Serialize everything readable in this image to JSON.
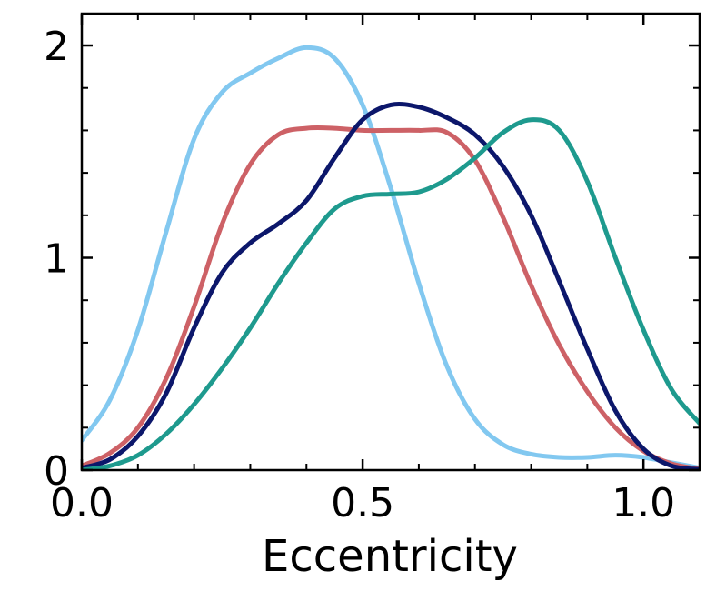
{
  "chart_data": {
    "type": "line",
    "title": "",
    "xlabel": "Eccentricity",
    "ylabel": "",
    "xlim": [
      0.0,
      1.1
    ],
    "ylim": [
      0.0,
      2.15
    ],
    "grid": false,
    "xticks": [
      {
        "value": 0.0,
        "label": "0.0"
      },
      {
        "value": 0.5,
        "label": "0.5"
      },
      {
        "value": 1.0,
        "label": "1.0"
      }
    ],
    "yticks": [
      {
        "value": 0,
        "label": "0"
      },
      {
        "value": 1,
        "label": "1"
      },
      {
        "value": 2,
        "label": "2"
      }
    ],
    "series": [
      {
        "color": "#82C8F0",
        "x": [
          0.0,
          0.05,
          0.1,
          0.15,
          0.2,
          0.25,
          0.3,
          0.35,
          0.4,
          0.45,
          0.5,
          0.55,
          0.6,
          0.65,
          0.7,
          0.75,
          0.8,
          0.85,
          0.9,
          0.95,
          1.0,
          1.05,
          1.1
        ],
        "y": [
          0.14,
          0.33,
          0.66,
          1.12,
          1.56,
          1.78,
          1.87,
          1.94,
          1.99,
          1.94,
          1.72,
          1.33,
          0.88,
          0.49,
          0.24,
          0.12,
          0.075,
          0.06,
          0.06,
          0.07,
          0.06,
          0.035,
          0.01
        ]
      },
      {
        "color": "#CD6166",
        "x": [
          0.0,
          0.05,
          0.1,
          0.15,
          0.2,
          0.25,
          0.3,
          0.35,
          0.4,
          0.45,
          0.5,
          0.55,
          0.6,
          0.65,
          0.7,
          0.75,
          0.8,
          0.85,
          0.9,
          0.95,
          1.0,
          1.05,
          1.1
        ],
        "y": [
          0.02,
          0.08,
          0.2,
          0.43,
          0.77,
          1.16,
          1.44,
          1.58,
          1.61,
          1.61,
          1.6,
          1.6,
          1.6,
          1.59,
          1.46,
          1.19,
          0.87,
          0.59,
          0.37,
          0.2,
          0.09,
          0.03,
          0.005
        ]
      },
      {
        "color": "#0C176B",
        "x": [
          0.0,
          0.05,
          0.1,
          0.15,
          0.2,
          0.25,
          0.3,
          0.35,
          0.4,
          0.45,
          0.5,
          0.55,
          0.6,
          0.65,
          0.7,
          0.75,
          0.8,
          0.85,
          0.9,
          0.95,
          1.0,
          1.05,
          1.1
        ],
        "y": [
          0.01,
          0.05,
          0.16,
          0.36,
          0.67,
          0.93,
          1.07,
          1.16,
          1.27,
          1.47,
          1.65,
          1.72,
          1.71,
          1.66,
          1.58,
          1.43,
          1.2,
          0.89,
          0.57,
          0.28,
          0.1,
          0.02,
          0.003
        ]
      },
      {
        "color": "#1E9A8E",
        "x": [
          0.0,
          0.05,
          0.1,
          0.15,
          0.2,
          0.25,
          0.3,
          0.35,
          0.4,
          0.45,
          0.5,
          0.55,
          0.6,
          0.65,
          0.7,
          0.75,
          0.8,
          0.85,
          0.9,
          0.95,
          1.0,
          1.05,
          1.1
        ],
        "y": [
          0.0,
          0.02,
          0.07,
          0.17,
          0.31,
          0.48,
          0.67,
          0.88,
          1.07,
          1.23,
          1.29,
          1.3,
          1.31,
          1.37,
          1.47,
          1.59,
          1.65,
          1.6,
          1.36,
          1.0,
          0.66,
          0.38,
          0.22
        ]
      }
    ]
  }
}
